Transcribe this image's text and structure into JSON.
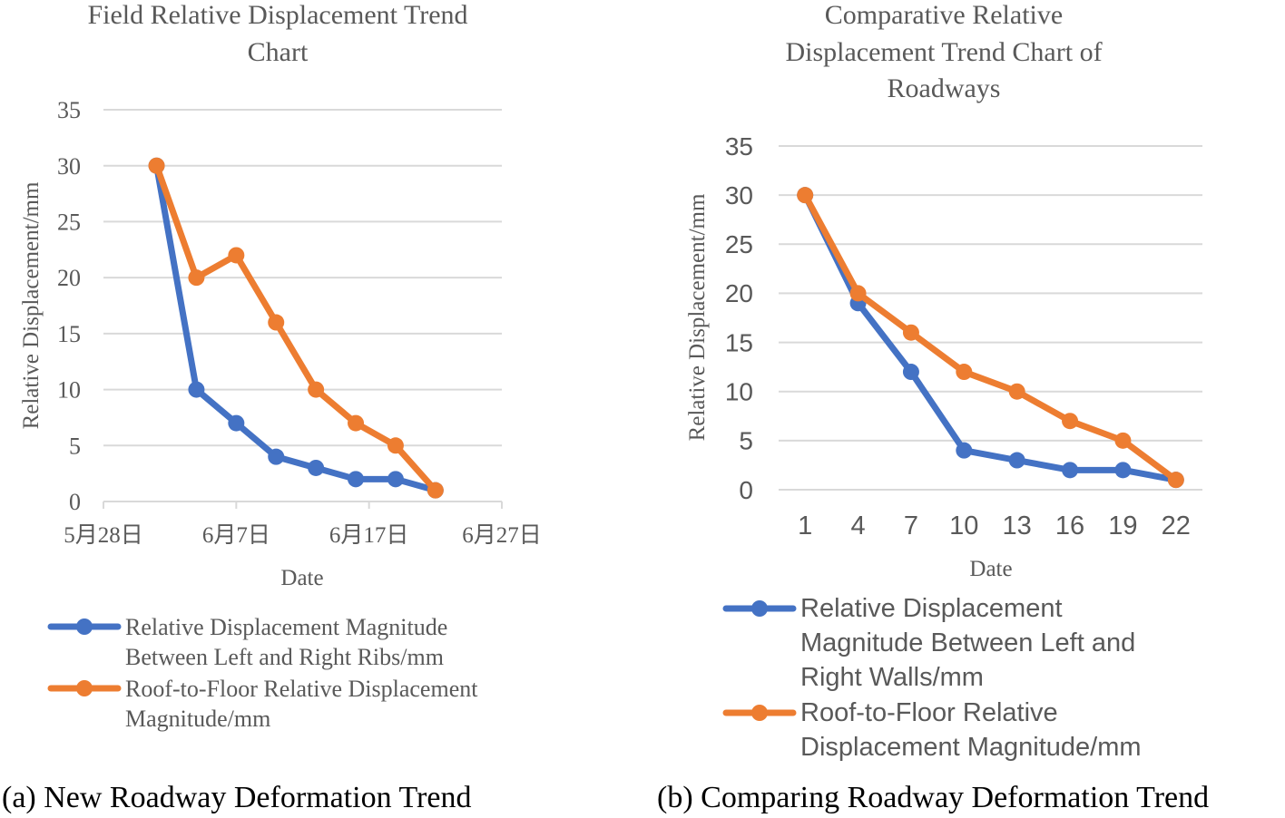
{
  "panel_a": {
    "title_lines": [
      "Field Relative Displacement Trend",
      "Chart"
    ],
    "caption": "(a) New Roadway Deformation Trend"
  },
  "panel_b": {
    "title_lines": [
      "Comparative Relative",
      "Displacement Trend Chart of",
      "Roadways"
    ],
    "caption": "(b) Comparing Roadway Deformation Trend"
  },
  "chart_data": [
    {
      "type": "line",
      "title": "Field Relative Displacement Trend Chart",
      "xlabel": "Date",
      "ylabel": "Relative Displacement/mm",
      "ylim": [
        0,
        35
      ],
      "yticks": [
        0,
        5,
        10,
        15,
        20,
        25,
        30,
        35
      ],
      "xaxis_type": "date",
      "xlim": [
        "2023-05-28",
        "2023-06-27"
      ],
      "xticks": [
        {
          "value": "2023-05-28",
          "label": "5月28日"
        },
        {
          "value": "2023-06-07",
          "label": "6月7日"
        },
        {
          "value": "2023-06-17",
          "label": "6月17日"
        },
        {
          "value": "2023-06-27",
          "label": "6月27日"
        }
      ],
      "x": [
        "2023-06-01",
        "2023-06-04",
        "2023-06-07",
        "2023-06-10",
        "2023-06-13",
        "2023-06-16",
        "2023-06-19",
        "2023-06-22"
      ],
      "grid": true,
      "legend_position": "bottom",
      "series": [
        {
          "name": "Relative Displacement Magnitude Between Left and Right Ribs/mm",
          "name_lines": [
            "Relative Displacement Magnitude",
            "Between Left and Right Ribs/mm"
          ],
          "color": "#4472C4",
          "values": [
            30,
            10,
            7,
            4,
            3,
            2,
            2,
            1
          ]
        },
        {
          "name": "Roof-to-Floor Relative Displacement Magnitude/mm",
          "name_lines": [
            "Roof-to-Floor Relative Displacement",
            "Magnitude/mm"
          ],
          "color": "#ED7D31",
          "values": [
            30,
            20,
            22,
            16,
            10,
            7,
            5,
            1
          ]
        }
      ]
    },
    {
      "type": "line",
      "title": "Comparative Relative Displacement Trend Chart of Roadways",
      "xlabel": "Date",
      "ylabel": "Relative Displacement/mm",
      "ylim": [
        0,
        35
      ],
      "yticks": [
        0,
        5,
        10,
        15,
        20,
        25,
        30,
        35
      ],
      "xaxis_type": "category",
      "categories": [
        "1",
        "4",
        "7",
        "10",
        "13",
        "16",
        "19",
        "22"
      ],
      "grid": true,
      "legend_position": "bottom",
      "series": [
        {
          "name": "Relative Displacement Magnitude Between Left and Right Walls/mm",
          "name_lines": [
            "Relative Displacement",
            "Magnitude Between Left and",
            "Right Walls/mm"
          ],
          "color": "#4472C4",
          "values": [
            30,
            19,
            12,
            4,
            3,
            2,
            2,
            1
          ]
        },
        {
          "name": "Roof-to-Floor Relative Displacement Magnitude/mm",
          "name_lines": [
            "Roof-to-Floor Relative",
            "Displacement Magnitude/mm"
          ],
          "color": "#ED7D31",
          "values": [
            30,
            20,
            16,
            12,
            10,
            7,
            5,
            1
          ]
        }
      ]
    }
  ]
}
